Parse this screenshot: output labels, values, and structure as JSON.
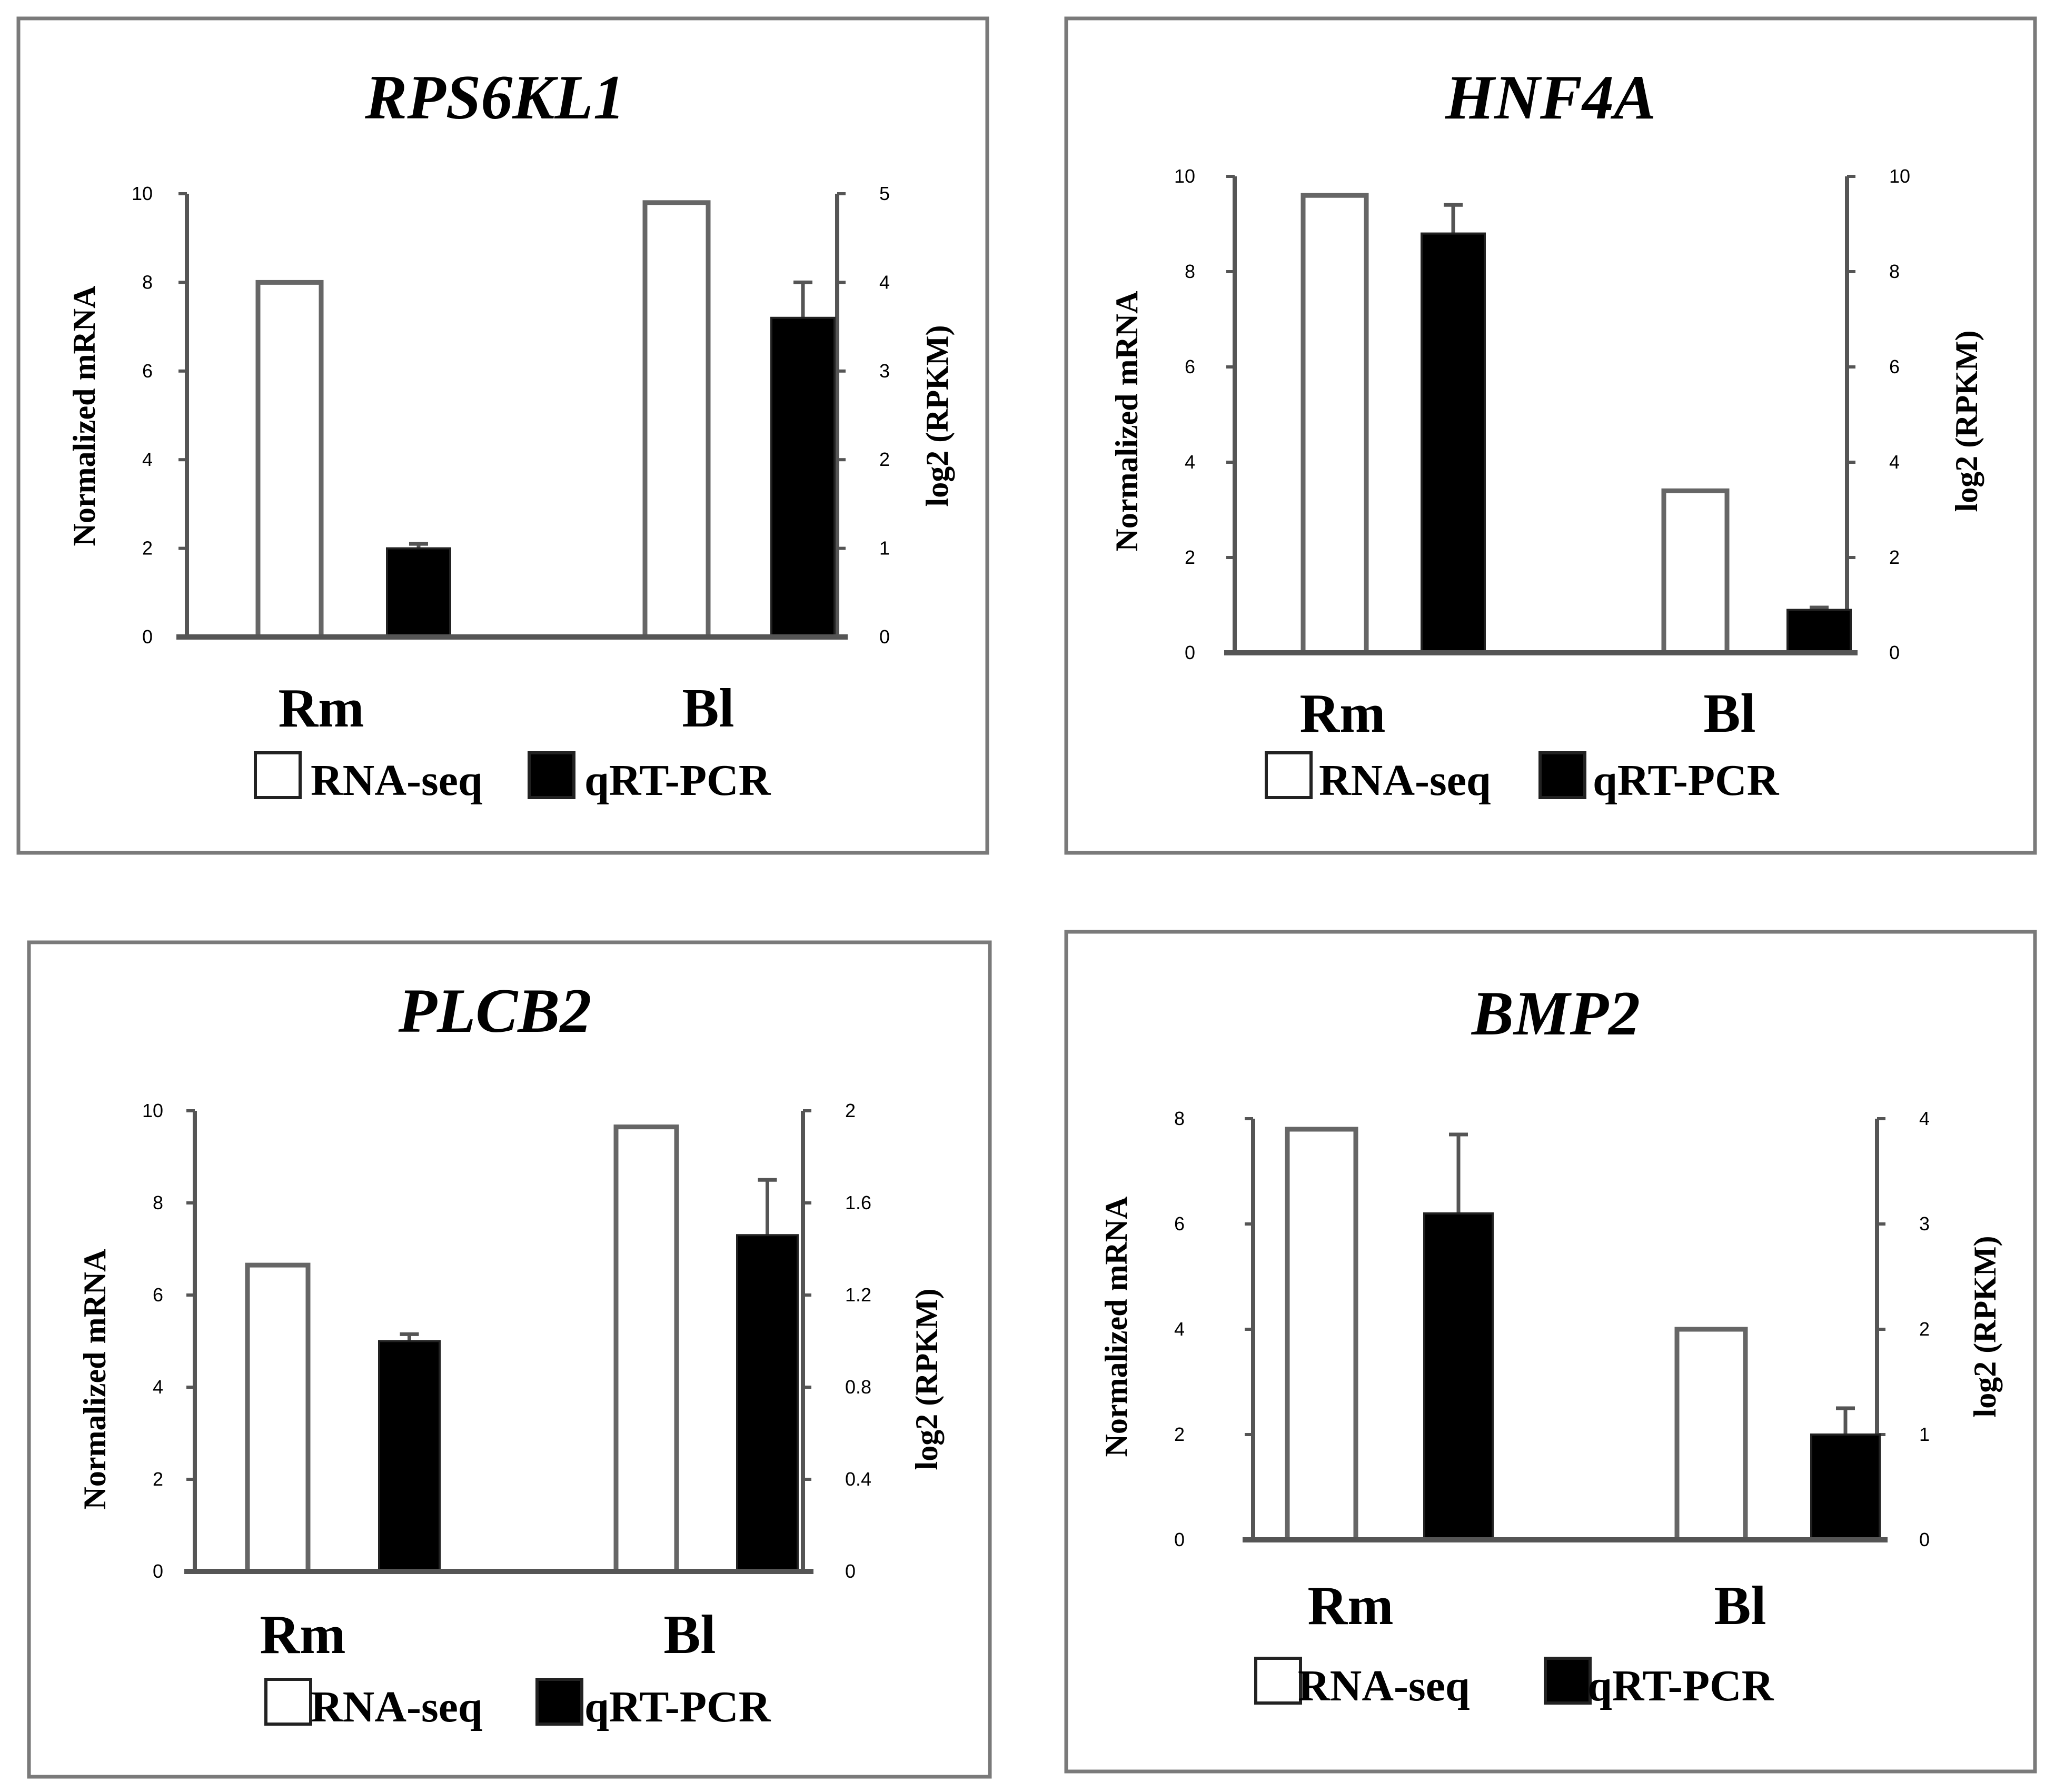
{
  "chart_data": [
    {
      "type": "bar",
      "title": "RPS6KL1",
      "categories": [
        "Rm",
        "Bl"
      ],
      "ylabel": "Normalized mRNA",
      "ylabel_right": "log2 (RPKM)",
      "ylim": [
        0,
        10
      ],
      "ylim_right": [
        0,
        5
      ],
      "yticks": [
        "0",
        "2",
        "4",
        "6",
        "8",
        "10"
      ],
      "yticks_right": [
        "0",
        "1",
        "2",
        "3",
        "4",
        "5"
      ],
      "legend": [
        "RNA-seq",
        "qRT-PCR"
      ],
      "legend_position": "bottom",
      "series": [
        {
          "name": "RNA-seq",
          "axis": "right",
          "values": [
            4.0,
            4.9
          ],
          "errors": [
            0,
            0
          ]
        },
        {
          "name": "qRT-PCR",
          "axis": "left",
          "values": [
            2.0,
            7.2
          ],
          "errors": [
            0.1,
            0.8
          ]
        }
      ]
    },
    {
      "type": "bar",
      "title": "HNF4A",
      "categories": [
        "Rm",
        "Bl"
      ],
      "ylabel": "Normalized mRNA",
      "ylabel_right": "log2 (RPKM)",
      "ylim": [
        0,
        10
      ],
      "ylim_right": [
        0,
        10
      ],
      "yticks": [
        "0",
        "2",
        "4",
        "6",
        "8",
        "10"
      ],
      "yticks_right": [
        "0",
        "2",
        "4",
        "6",
        "8",
        "10"
      ],
      "legend": [
        "RNA-seq",
        "qRT-PCR"
      ],
      "legend_position": "bottom",
      "series": [
        {
          "name": "RNA-seq",
          "axis": "right",
          "values": [
            9.6,
            3.4
          ],
          "errors": [
            0,
            0
          ]
        },
        {
          "name": "qRT-PCR",
          "axis": "left",
          "values": [
            8.8,
            0.9
          ],
          "errors": [
            0.6,
            0.05
          ]
        }
      ]
    },
    {
      "type": "bar",
      "title": "PLCB2",
      "categories": [
        "Rm",
        "Bl"
      ],
      "ylabel": "Normalized mRNA",
      "ylabel_right": "log2 (RPKM)",
      "ylim": [
        0,
        10
      ],
      "ylim_right": [
        0,
        2
      ],
      "yticks": [
        "0",
        "2",
        "4",
        "6",
        "8",
        "10"
      ],
      "yticks_right": [
        "0",
        "0.4",
        "0.8",
        "1.2",
        "1.6",
        "2"
      ],
      "legend": [
        "RNA-seq",
        "qRT-PCR"
      ],
      "legend_position": "bottom",
      "series": [
        {
          "name": "RNA-seq",
          "axis": "right",
          "values": [
            1.33,
            1.93
          ],
          "errors": [
            0,
            0
          ]
        },
        {
          "name": "qRT-PCR",
          "axis": "left",
          "values": [
            5.0,
            7.3
          ],
          "errors": [
            0.15,
            1.2
          ]
        }
      ]
    },
    {
      "type": "bar",
      "title": "BMP2",
      "categories": [
        "Rm",
        "Bl"
      ],
      "ylabel": "Normalized mRNA",
      "ylabel_right": "log2 (RPKM)",
      "ylim": [
        0,
        8
      ],
      "ylim_right": [
        0,
        4
      ],
      "yticks": [
        "0",
        "2",
        "4",
        "6",
        "8"
      ],
      "yticks_right": [
        "0",
        "1",
        "2",
        "3",
        "4"
      ],
      "legend": [
        "RNA-seq",
        "qRT-PCR"
      ],
      "legend_position": "bottom",
      "series": [
        {
          "name": "RNA-seq",
          "axis": "right",
          "values": [
            3.9,
            2.0
          ],
          "errors": [
            0,
            0
          ]
        },
        {
          "name": "qRT-PCR",
          "axis": "left",
          "values": [
            6.2,
            2.0
          ],
          "errors": [
            1.5,
            0.5
          ]
        }
      ]
    }
  ]
}
